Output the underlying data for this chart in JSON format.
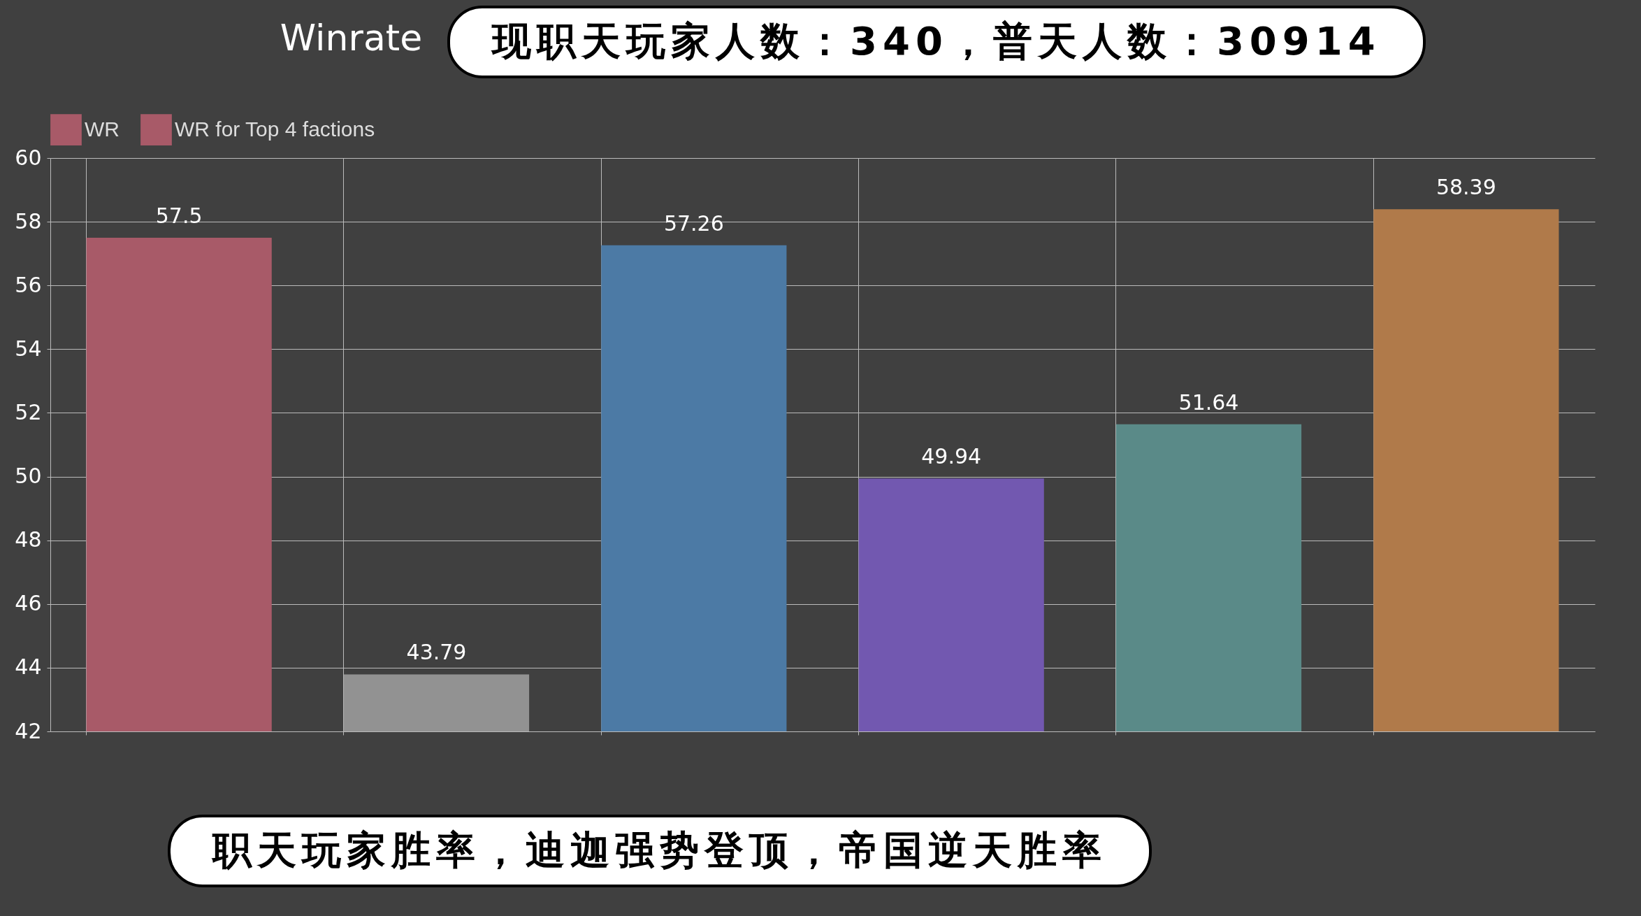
{
  "chart_data": {
    "type": "bar",
    "title": "Winrate",
    "categories": [
      null,
      null,
      null,
      null,
      null,
      null
    ],
    "series": [
      {
        "name": "WR",
        "color": "#a85a68",
        "values": [
          null,
          null,
          null,
          null,
          null,
          null
        ]
      },
      {
        "name": "WR for Top 4 factions",
        "color": "#a85a68",
        "colors": [
          "#a85a68",
          "#929292",
          "#4c7aa5",
          "#7258b0",
          "#5a8a88",
          "#b07a4a"
        ],
        "values": [
          57.5,
          43.79,
          57.26,
          49.94,
          51.64,
          58.39
        ]
      }
    ],
    "ylim": [
      42,
      60
    ],
    "yticks": [
      42,
      44,
      46,
      48,
      50,
      52,
      54,
      56,
      58,
      60
    ],
    "grid": true,
    "legend": "top",
    "data_labels": true,
    "annotations": [
      "现职天玩家人数：340，普天人数：30914",
      "职天玩家胜率，迪迦强势登顶，帝国逆天胜率"
    ]
  }
}
